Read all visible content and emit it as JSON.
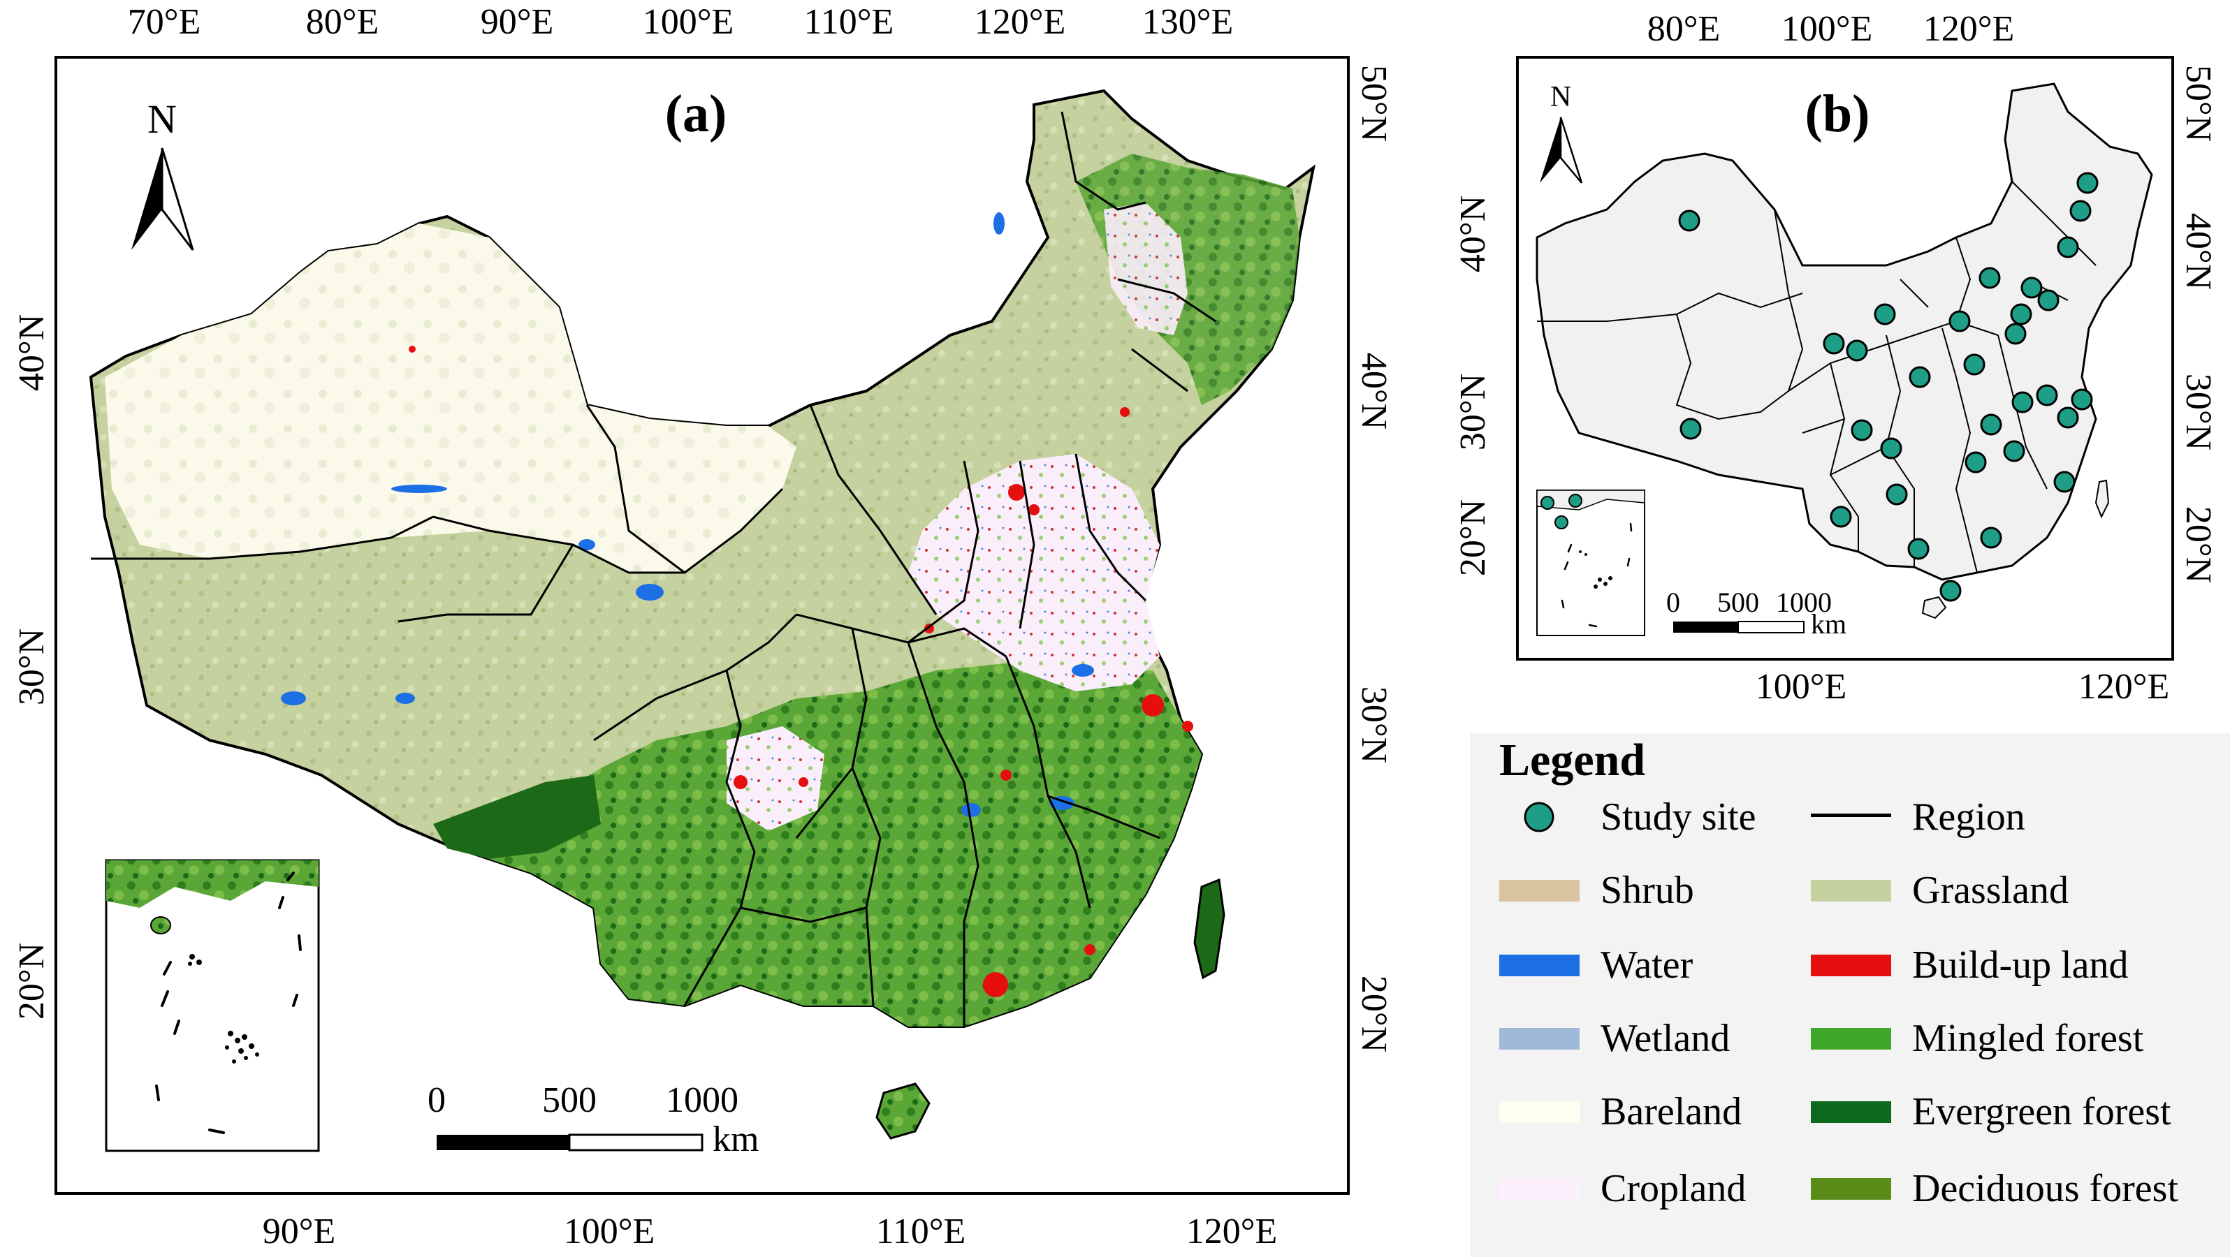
{
  "panel_a": {
    "label": "(a)",
    "north": "N",
    "top_ticks": [
      "70°E",
      "80°E",
      "90°E",
      "100°E",
      "110°E",
      "120°E",
      "130°E"
    ],
    "bottom_ticks": [
      "90°E",
      "100°E",
      "110°E",
      "120°E"
    ],
    "left_ticks": [
      "40°N",
      "30°N",
      "20°N"
    ],
    "right_ticks": [
      "50°N",
      "40°N",
      "30°N",
      "20°N"
    ],
    "scale": {
      "labels": [
        "0",
        "500",
        "1000"
      ],
      "unit": "km"
    }
  },
  "panel_b": {
    "label": "(b)",
    "north": "N",
    "top_ticks": [
      "80°E",
      "100°E",
      "120°E"
    ],
    "bottom_ticks": [
      "100°E",
      "120°E"
    ],
    "left_ticks": [
      "40°N",
      "30°N",
      "20°N"
    ],
    "right_ticks": [
      "50°N",
      "40°N",
      "30°N",
      "20°N"
    ],
    "scale": {
      "labels": [
        "0",
        "500",
        "1000"
      ],
      "unit": "km"
    },
    "study_site_count": 36
  },
  "legend": {
    "title": "Legend",
    "items": [
      {
        "label": "Study site",
        "kind": "dot",
        "color": "#1e9e86"
      },
      {
        "label": "Region",
        "kind": "line",
        "color": "#000000"
      },
      {
        "label": "Shrub",
        "kind": "swatch",
        "color": "#d9c4a0"
      },
      {
        "label": "Grassland",
        "kind": "swatch",
        "color": "#c5d19f"
      },
      {
        "label": "Water",
        "kind": "swatch",
        "color": "#1d6fe6"
      },
      {
        "label": "Build-up land",
        "kind": "swatch",
        "color": "#e60f10"
      },
      {
        "label": "Wetland",
        "kind": "swatch",
        "color": "#9fb9d8"
      },
      {
        "label": "Mingled forest",
        "kind": "swatch",
        "color": "#40a828"
      },
      {
        "label": "Bareland",
        "kind": "swatch",
        "color": "#fffff0"
      },
      {
        "label": "Evergreen forest",
        "kind": "swatch",
        "color": "#0b6a1e"
      },
      {
        "label": "Cropland",
        "kind": "swatch",
        "color": "#fdf0fd"
      },
      {
        "label": "Deciduous forest",
        "kind": "swatch",
        "color": "#5b8c1a"
      }
    ]
  }
}
